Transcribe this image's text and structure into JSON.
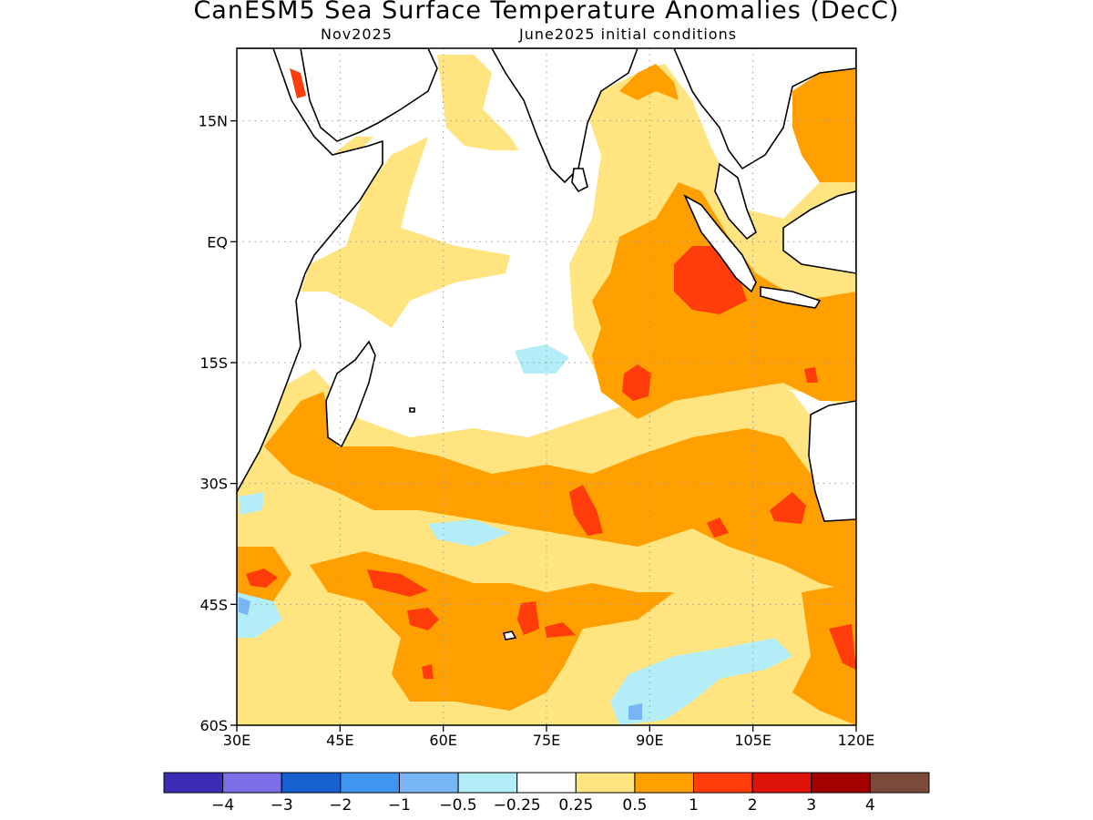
{
  "figure": {
    "title": "CanESM5 Sea Surface Temperature Anomalies (DecC)",
    "subtitle_left": "Nov2025",
    "subtitle_right": "June2025 initial conditions"
  },
  "map": {
    "lon_range": [
      30,
      120
    ],
    "lat_range": [
      -60,
      24
    ],
    "x_ticks": [
      {
        "value": 30,
        "label": "30E"
      },
      {
        "value": 45,
        "label": "45E"
      },
      {
        "value": 60,
        "label": "60E"
      },
      {
        "value": 75,
        "label": "75E"
      },
      {
        "value": 90,
        "label": "90E"
      },
      {
        "value": 105,
        "label": "105E"
      },
      {
        "value": 120,
        "label": "120E"
      }
    ],
    "y_ticks": [
      {
        "value": 15,
        "label": "15N"
      },
      {
        "value": 0,
        "label": "EQ"
      },
      {
        "value": -15,
        "label": "15S"
      },
      {
        "value": -30,
        "label": "30S"
      },
      {
        "value": -45,
        "label": "45S"
      },
      {
        "value": -60,
        "label": "60S"
      }
    ],
    "grid": "dotted"
  },
  "colorbar": {
    "colors": [
      "#3b2bb5",
      "#7b6ee8",
      "#1660d0",
      "#3f95f0",
      "#78b5f6",
      "#b3eef8",
      "#ffffff",
      "#ffe480",
      "#ffa000",
      "#ff3c0a",
      "#e01308",
      "#a50000",
      "#7b4b3a"
    ],
    "labels": [
      "−4",
      "−3",
      "−2",
      "−1",
      "−0.5",
      "−0.25",
      "0.25",
      "0.5",
      "1",
      "2",
      "3",
      "4"
    ]
  },
  "regions": [
    {
      "name": "land",
      "color": "#ffffff"
    },
    {
      "name": "anomaly-0.25-0.5",
      "color": "#ffe480"
    },
    {
      "name": "anomaly-0.5-1",
      "color": "#ffa000"
    },
    {
      "name": "anomaly-1-2",
      "color": "#ff3c0a"
    },
    {
      "name": "anomaly-neg-0.25-0.5",
      "color": "#b3eef8"
    },
    {
      "name": "anomaly-neg-0.5-1",
      "color": "#78b5f6"
    }
  ]
}
